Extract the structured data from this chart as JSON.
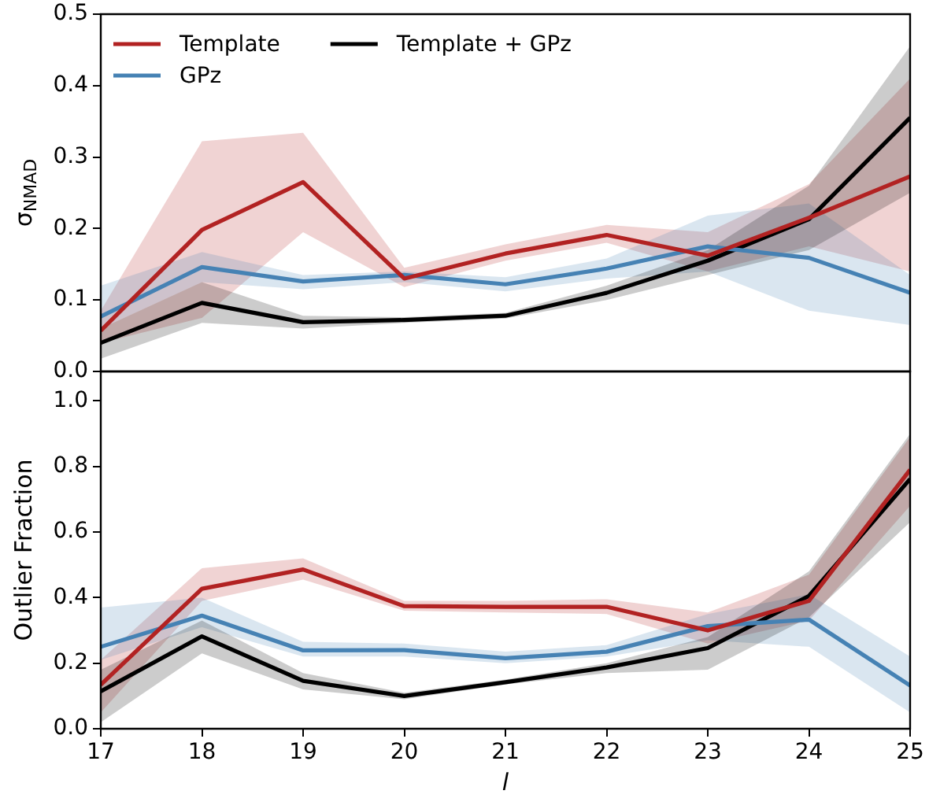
{
  "chart_data": [
    {
      "type": "line",
      "ylabel": "σ$_{NMAD}$",
      "x": [
        17,
        18,
        19,
        20,
        21,
        22,
        23,
        24,
        25
      ],
      "xlim": [
        17,
        25
      ],
      "xticks": [
        17,
        18,
        19,
        20,
        21,
        22,
        23,
        24,
        25
      ],
      "ylim": [
        0,
        0.5
      ],
      "yticks": [
        {
          "value": 0,
          "label": "0.0"
        },
        {
          "value": 0.1,
          "label": "0.1"
        },
        {
          "value": 0.2,
          "label": "0.2"
        },
        {
          "value": 0.3,
          "label": "0.3"
        },
        {
          "value": 0.4,
          "label": "0.4"
        },
        {
          "value": 0.5,
          "label": "0.5"
        }
      ],
      "tick_labels": "y",
      "legend": "top left",
      "grid": false,
      "marker": "none",
      "line_style": "solid",
      "series": [
        {
          "name": "Template",
          "color": "#b22222",
          "values": [
            0.057,
            0.198,
            0.265,
            0.13,
            0.165,
            0.191,
            0.162,
            0.215,
            0.273
          ],
          "lower": [
            0.04,
            0.075,
            0.195,
            0.118,
            0.155,
            0.18,
            0.14,
            0.175,
            0.14
          ],
          "upper": [
            0.085,
            0.322,
            0.334,
            0.145,
            0.178,
            0.205,
            0.195,
            0.262,
            0.41
          ]
        },
        {
          "name": "GPz",
          "color": "#4682b4",
          "values": [
            0.077,
            0.146,
            0.126,
            0.135,
            0.122,
            0.144,
            0.175,
            0.159,
            0.11
          ],
          "lower": [
            0.06,
            0.125,
            0.115,
            0.125,
            0.112,
            0.13,
            0.14,
            0.085,
            0.065
          ],
          "upper": [
            0.12,
            0.167,
            0.135,
            0.14,
            0.132,
            0.158,
            0.218,
            0.235,
            0.135
          ]
        },
        {
          "name": "Template + GPz",
          "color": "#000000",
          "values": [
            0.04,
            0.096,
            0.069,
            0.072,
            0.078,
            0.11,
            0.155,
            0.213,
            0.355
          ],
          "lower": [
            0.018,
            0.068,
            0.06,
            0.068,
            0.074,
            0.1,
            0.135,
            0.17,
            0.25
          ],
          "upper": [
            0.06,
            0.125,
            0.078,
            0.076,
            0.082,
            0.12,
            0.17,
            0.26,
            0.455
          ]
        }
      ]
    },
    {
      "type": "line",
      "xlabel": "l",
      "ylabel": "Outlier Fraction",
      "x": [
        17,
        18,
        19,
        20,
        21,
        22,
        23,
        24,
        25
      ],
      "xlim": [
        17,
        25
      ],
      "xticks": [
        17,
        18,
        19,
        20,
        21,
        22,
        23,
        24,
        25
      ],
      "ylim": [
        0,
        1.09
      ],
      "yticks": [
        {
          "value": 0,
          "label": "0.0"
        },
        {
          "value": 0.2,
          "label": "0.2"
        },
        {
          "value": 0.4,
          "label": "0.4"
        },
        {
          "value": 0.6,
          "label": "0.6"
        },
        {
          "value": 0.8,
          "label": "0.8"
        },
        {
          "value": 1,
          "label": "1.0"
        }
      ],
      "grid": false,
      "marker": "none",
      "line_style": "solid",
      "series": [
        {
          "color": "#b22222",
          "values": [
            0.134,
            0.427,
            0.486,
            0.374,
            0.372,
            0.372,
            0.3,
            0.39,
            0.79
          ],
          "lower": [
            0.05,
            0.39,
            0.455,
            0.36,
            0.355,
            0.35,
            0.26,
            0.33,
            0.68
          ],
          "upper": [
            0.21,
            0.49,
            0.52,
            0.39,
            0.39,
            0.395,
            0.355,
            0.47,
            0.89
          ]
        },
        {
          "color": "#4682b4",
          "values": [
            0.25,
            0.345,
            0.239,
            0.24,
            0.215,
            0.235,
            0.313,
            0.333,
            0.132
          ],
          "lower": [
            0.21,
            0.31,
            0.22,
            0.22,
            0.2,
            0.22,
            0.27,
            0.25,
            0.05
          ],
          "upper": [
            0.37,
            0.4,
            0.265,
            0.26,
            0.235,
            0.255,
            0.35,
            0.41,
            0.22
          ]
        },
        {
          "color": "#000000",
          "values": [
            0.114,
            0.282,
            0.146,
            0.1,
            0.142,
            0.187,
            0.246,
            0.405,
            0.762
          ],
          "lower": [
            0.02,
            0.23,
            0.12,
            0.09,
            0.135,
            0.17,
            0.18,
            0.34,
            0.63
          ],
          "upper": [
            0.18,
            0.33,
            0.17,
            0.11,
            0.15,
            0.2,
            0.28,
            0.48,
            0.9
          ]
        }
      ]
    }
  ]
}
